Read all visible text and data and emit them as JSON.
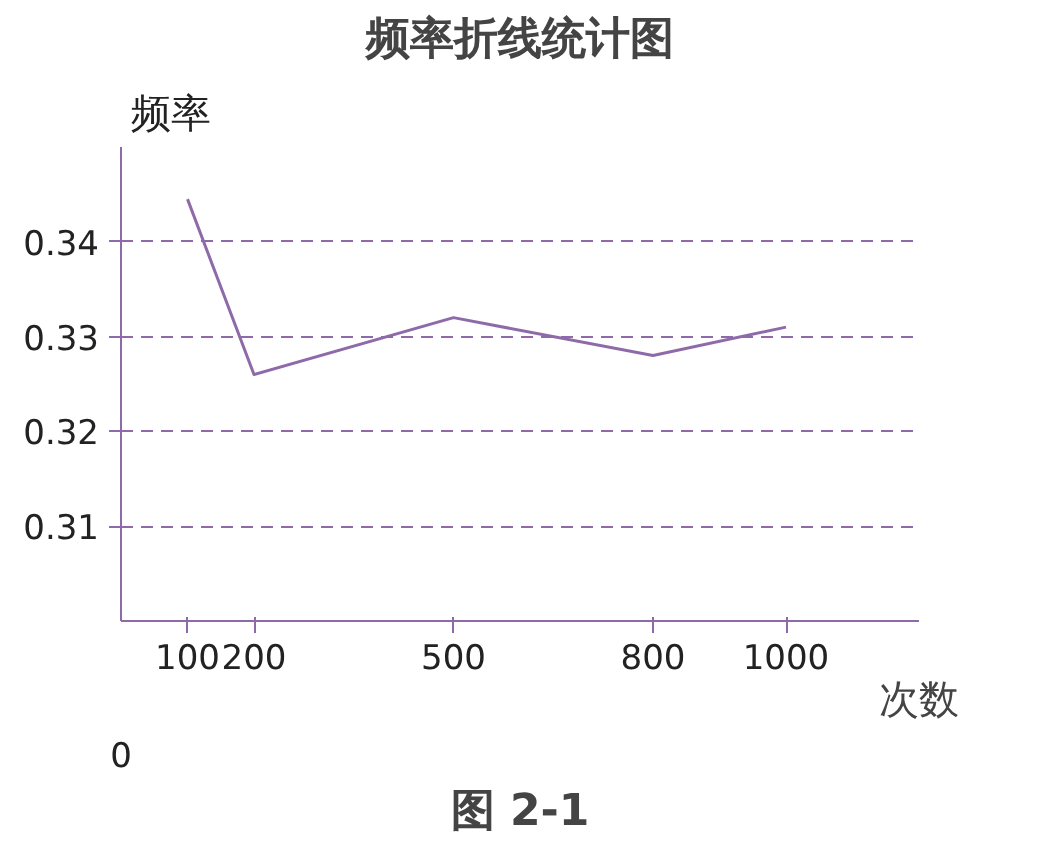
{
  "chart_data": {
    "type": "line",
    "title": "频率折线统计图",
    "ylabel": "频率",
    "xlabel": "次数",
    "x": [
      100,
      200,
      500,
      800,
      1000
    ],
    "series": [
      {
        "color": "#8e6aa8",
        "values": [
          0.3445,
          0.326,
          0.332,
          0.328,
          0.331
        ]
      }
    ],
    "xlim": [
      0,
      1200
    ],
    "xticks": [
      100,
      200,
      500,
      800,
      1000
    ],
    "ylim": [
      0.3,
      0.35
    ],
    "yticks": [
      0.31,
      0.32,
      0.33,
      0.34
    ],
    "grid": "y",
    "line_style": "solid",
    "marker": "none",
    "annotations": [
      "0",
      "图 2-1"
    ]
  }
}
